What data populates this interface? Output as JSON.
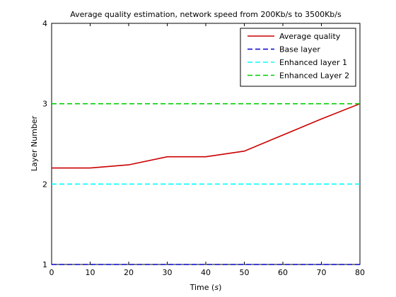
{
  "chart_data": {
    "type": "line",
    "title": "Average quality estimation, network speed from 200Kb/s to 3500Kb/s",
    "xlabel_prefix": "Time (",
    "xlabel_unit": "s",
    "xlabel_suffix": ")",
    "ylabel": "Layer Number",
    "xlim": [
      0,
      80
    ],
    "ylim": [
      1,
      4
    ],
    "xticks": [
      0,
      10,
      20,
      30,
      40,
      50,
      60,
      70,
      80
    ],
    "yticks": [
      1,
      2,
      3,
      4
    ],
    "grid": false,
    "legend_position": "top-right",
    "series": [
      {
        "name": "Average quality",
        "color": "#cc0000",
        "style": "solid",
        "x": [
          0,
          10,
          20,
          30,
          40,
          50,
          60,
          70,
          80
        ],
        "y": [
          2.2,
          2.2,
          2.24,
          2.34,
          2.34,
          2.41,
          2.61,
          2.81,
          3.0
        ]
      },
      {
        "name": "Base layer",
        "color": "#0000cc",
        "style": "dashed",
        "x": [
          0,
          80
        ],
        "y": [
          1,
          1
        ]
      },
      {
        "name": "Enhanced layer 1",
        "color": "#00ffff",
        "style": "dashed",
        "x": [
          0,
          80
        ],
        "y": [
          2,
          2
        ]
      },
      {
        "name": "Enhanced Layer 2",
        "color": "#00cc00",
        "style": "dashed",
        "x": [
          0,
          80
        ],
        "y": [
          3,
          3
        ]
      }
    ]
  }
}
